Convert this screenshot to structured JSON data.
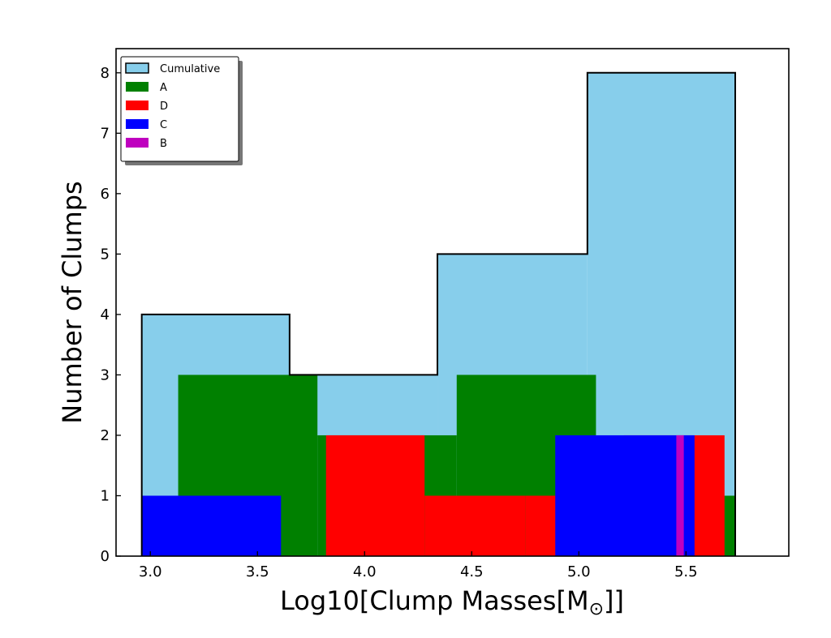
{
  "chart_data": {
    "type": "histogram",
    "xlabel": "Log10[Clump Masses[M",
    "xlabel_symbol": "⊙",
    "xlabel_suffix": "]]",
    "ylabel": "Number of Clumps",
    "xlim": [
      2.84,
      5.98
    ],
    "ylim": [
      0,
      8.4
    ],
    "x_ticks": [
      3.0,
      3.5,
      4.0,
      4.5,
      5.0,
      5.5
    ],
    "y_ticks": [
      0,
      1,
      2,
      3,
      4,
      5,
      6,
      7,
      8
    ],
    "grid": false,
    "legend_position": "top-left",
    "legend": [
      {
        "name": "Cumulative",
        "color": "#87ceeb",
        "edge": "#000000"
      },
      {
        "name": "A",
        "color": "#008000"
      },
      {
        "name": "D",
        "color": "#ff0000"
      },
      {
        "name": "C",
        "color": "#0000ff"
      },
      {
        "name": "B",
        "color": "#bf00bf"
      }
    ],
    "series": [
      {
        "name": "Cumulative",
        "color": "#87ceeb",
        "outline": true,
        "bins": [
          {
            "x0": 2.96,
            "x1": 3.65,
            "count": 4
          },
          {
            "x0": 3.65,
            "x1": 4.34,
            "count": 3
          },
          {
            "x0": 4.34,
            "x1": 5.04,
            "count": 5
          },
          {
            "x0": 5.04,
            "x1": 5.73,
            "count": 8
          }
        ]
      },
      {
        "name": "A",
        "color": "#008000",
        "bins": [
          {
            "x0": 3.13,
            "x1": 3.78,
            "count": 3
          },
          {
            "x0": 3.78,
            "x1": 4.43,
            "count": 2
          },
          {
            "x0": 4.43,
            "x1": 5.08,
            "count": 3
          },
          {
            "x0": 5.08,
            "x1": 5.73,
            "count": 1
          }
        ]
      },
      {
        "name": "D",
        "color": "#ff0000",
        "bins": [
          {
            "x0": 3.82,
            "x1": 4.28,
            "count": 2
          },
          {
            "x0": 4.28,
            "x1": 4.75,
            "count": 1
          },
          {
            "x0": 4.75,
            "x1": 5.21,
            "count": 1
          },
          {
            "x0": 5.21,
            "x1": 5.68,
            "count": 2
          }
        ]
      },
      {
        "name": "C",
        "color": "#0000ff",
        "bins": [
          {
            "x0": 2.96,
            "x1": 3.61,
            "count": 1
          },
          {
            "x0": 3.61,
            "x1": 4.25,
            "count": 0
          },
          {
            "x0": 4.25,
            "x1": 4.89,
            "count": 0
          },
          {
            "x0": 4.89,
            "x1": 5.54,
            "count": 2
          }
        ]
      },
      {
        "name": "B",
        "color": "#bf00bf",
        "bins": [
          {
            "x0": 5.455,
            "x1": 5.49,
            "count": 2
          }
        ]
      }
    ]
  }
}
